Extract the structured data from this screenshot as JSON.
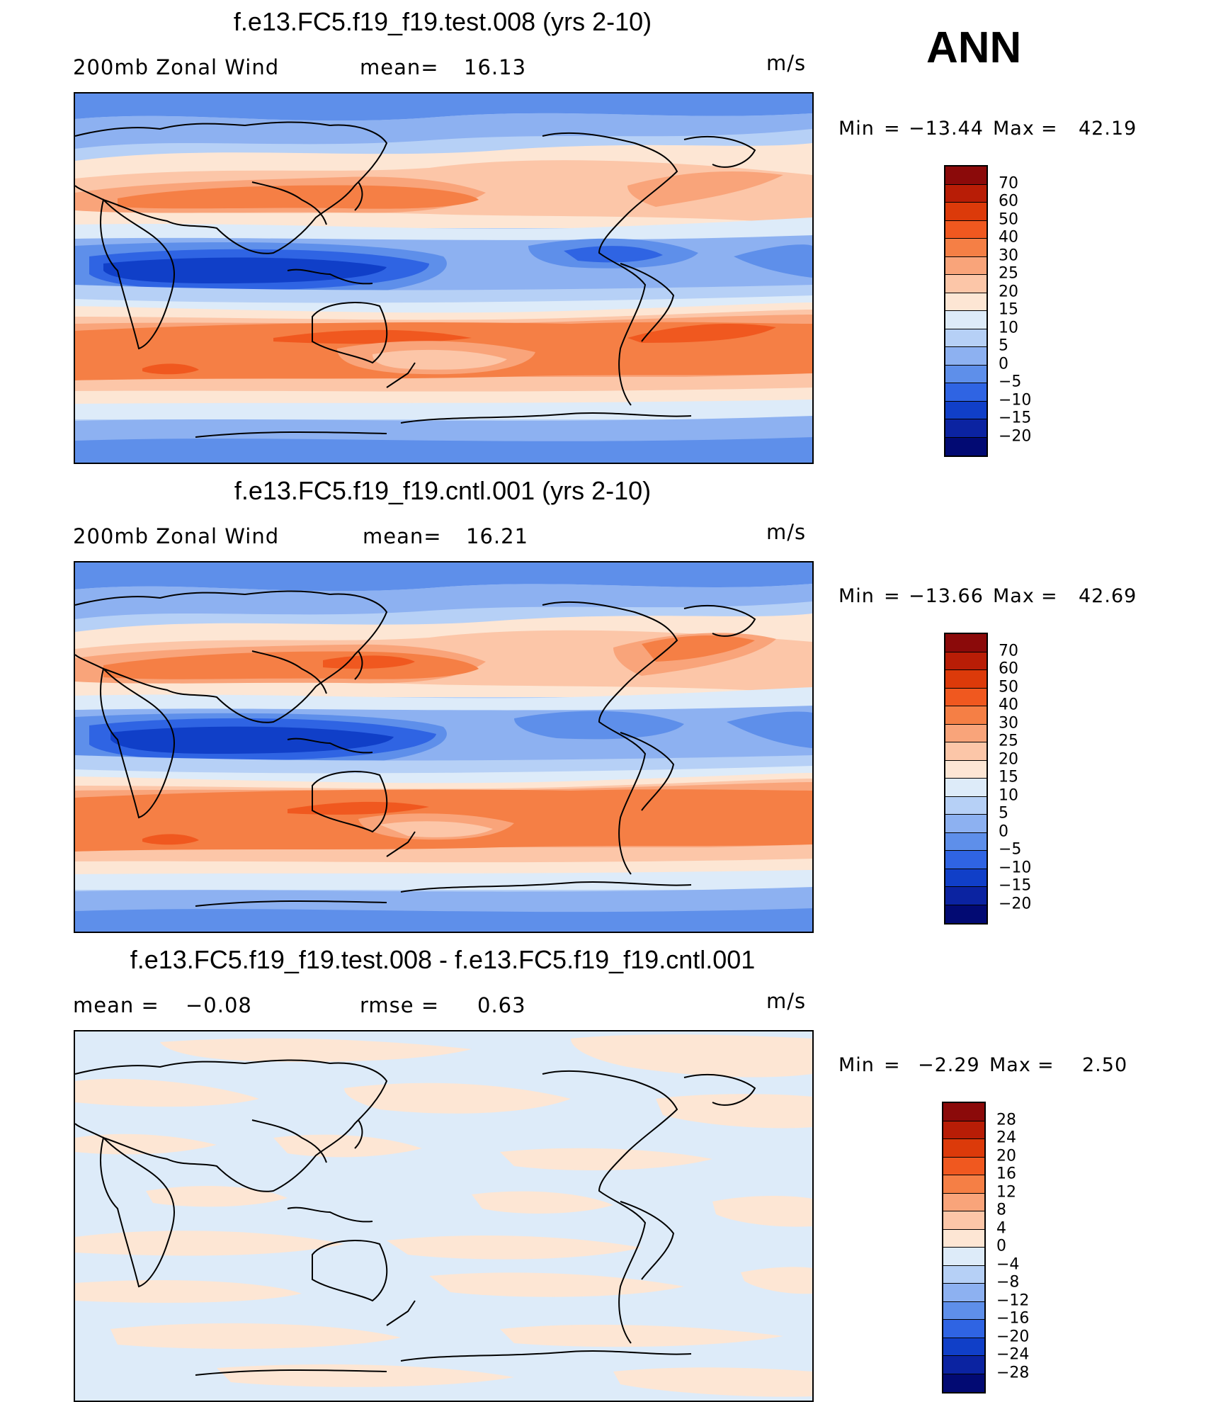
{
  "season": "ANN",
  "panels": [
    {
      "title": "f.e13.FC5.f19_f19.test.008 (yrs 2-10)",
      "left_label": "200mb Zonal Wind",
      "mean_label": "mean=",
      "mean_value": "16.13",
      "units": "m/s",
      "min_label": "Min",
      "min_value": "−13.44",
      "max_label": "Max",
      "max_value": "42.19",
      "colorbar": [
        "70",
        "60",
        "50",
        "40",
        "30",
        "25",
        "20",
        "15",
        "10",
        "5",
        "0",
        "−5",
        "−10",
        "−15",
        "−20"
      ],
      "colors": [
        "#8b0a0a",
        "#b81d06",
        "#dc3a0a",
        "#f0581f",
        "#f57f45",
        "#f9a47a",
        "#fcc6a8",
        "#fde6d4",
        "#ddebf9",
        "#b6d0f6",
        "#8db1f1",
        "#5e8fea",
        "#2f64e3",
        "#103fc8",
        "#0b23a1",
        "#020a73"
      ]
    },
    {
      "title": "f.e13.FC5.f19_f19.cntl.001 (yrs 2-10)",
      "left_label": "200mb Zonal Wind",
      "mean_label": "mean=",
      "mean_value": "16.21",
      "units": "m/s",
      "min_label": "Min",
      "min_value": "−13.66",
      "max_label": "Max",
      "max_value": "42.69",
      "colorbar": [
        "70",
        "60",
        "50",
        "40",
        "30",
        "25",
        "20",
        "15",
        "10",
        "5",
        "0",
        "−5",
        "−10",
        "−15",
        "−20"
      ],
      "colors": [
        "#8b0a0a",
        "#b81d06",
        "#dc3a0a",
        "#f0581f",
        "#f57f45",
        "#f9a47a",
        "#fcc6a8",
        "#fde6d4",
        "#ddebf9",
        "#b6d0f6",
        "#8db1f1",
        "#5e8fea",
        "#2f64e3",
        "#103fc8",
        "#0b23a1",
        "#020a73"
      ]
    },
    {
      "title": "f.e13.FC5.f19_f19.test.008 - f.e13.FC5.f19_f19.cntl.001",
      "mean_label": "mean =",
      "mean_value": "−0.08",
      "rmse_label": "rmse =",
      "rmse_value": "0.63",
      "units": "m/s",
      "min_label": "Min",
      "min_value": "−2.29",
      "max_label": "Max",
      "max_value": "2.50",
      "colorbar": [
        "28",
        "24",
        "20",
        "16",
        "12",
        "8",
        "4",
        "0",
        "−4",
        "−8",
        "−12",
        "−16",
        "−20",
        "−24",
        "−28"
      ],
      "colors": [
        "#8b0a0a",
        "#b81d06",
        "#dc3a0a",
        "#f0581f",
        "#f57f45",
        "#f9a47a",
        "#fcc6a8",
        "#fde6d4",
        "#ddebf9",
        "#b6d0f6",
        "#8db1f1",
        "#5e8fea",
        "#2f64e3",
        "#103fc8",
        "#0b23a1",
        "#020a73"
      ]
    }
  ]
}
